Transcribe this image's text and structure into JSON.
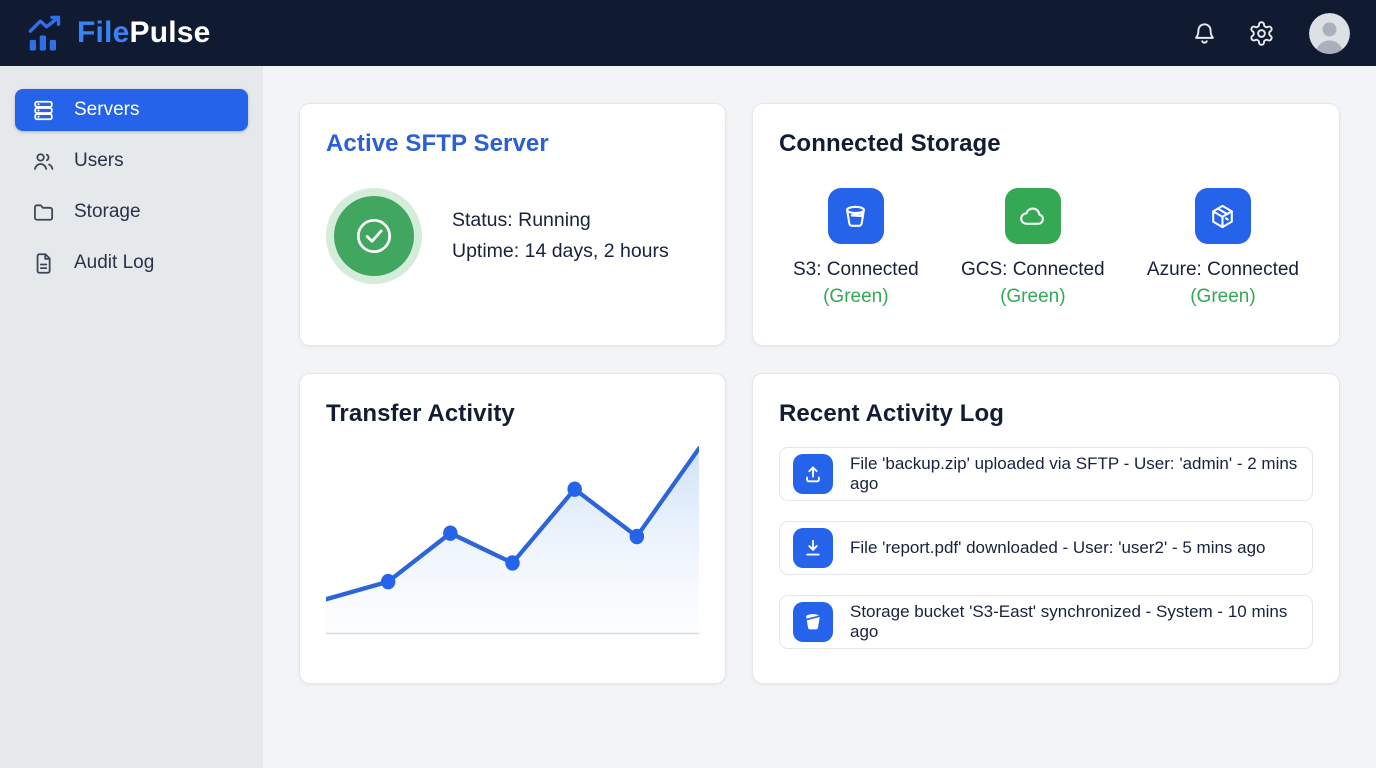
{
  "colors": {
    "navbar_bg": "#101b31",
    "accent_blue": "#2563eb",
    "logo_blue": "#3b82f6",
    "title_blue": "#2b5fd4",
    "green": "#34a853",
    "light_green": "#d4edda",
    "sidebar_bg": "#e6e9ec",
    "main_bg": "#f2f4f6",
    "line_blue": "#2c64d9"
  },
  "header": {
    "brand_primary": "File",
    "brand_secondary": "Pulse",
    "icons": [
      "trending-bar-chart-logo-icon",
      "bell-icon",
      "gear-icon",
      "avatar"
    ]
  },
  "sidebar": {
    "items": [
      {
        "label": "Servers",
        "icon": "server-stack-icon",
        "active": true
      },
      {
        "label": "Users",
        "icon": "users-icon",
        "active": false
      },
      {
        "label": "Storage",
        "icon": "folder-icon",
        "active": false
      },
      {
        "label": "Audit Log",
        "icon": "document-icon",
        "active": false
      }
    ]
  },
  "cards": {
    "sftp": {
      "title": "Active SFTP Server",
      "status": "Status: Running",
      "uptime": "Uptime: 14 days, 2 hours",
      "status_icon": "check-circle-icon",
      "status_color": "#41a65f"
    },
    "storage": {
      "title": "Connected Storage",
      "items": [
        {
          "label": "S3: Connected",
          "status": "(Green)",
          "icon": "bucket-icon",
          "tile_color": "#2563eb"
        },
        {
          "label": "GCS: Connected",
          "status": "(Green)",
          "icon": "cloud-icon",
          "tile_color": "#34a853"
        },
        {
          "label": "Azure: Connected",
          "status": "(Green)",
          "icon": "package-box-icon",
          "tile_color": "#2563eb"
        }
      ]
    },
    "transfer": {
      "title": "Transfer Activity",
      "chart_data": {
        "type": "area",
        "x": [
          0,
          1,
          2,
          3,
          4,
          5,
          6
        ],
        "values": [
          31,
          47,
          91,
          64,
          131,
          88,
          168
        ],
        "baseline": 168,
        "ylim": [
          0,
          172
        ],
        "dot_indices": [
          1,
          2,
          3,
          4,
          5
        ],
        "title": "Transfer Activity",
        "xlabel": "",
        "ylabel": "",
        "axis_labels_visible": false,
        "grid": false,
        "legend": false,
        "line_color": "#2c64d9",
        "fill": "blue-gradient-fade"
      }
    },
    "activity": {
      "title": "Recent Activity Log",
      "entries": [
        {
          "icon": "upload-icon",
          "text": "File 'backup.zip' uploaded via SFTP - User: 'admin' - 2 mins ago"
        },
        {
          "icon": "download-icon",
          "text": "File 'report.pdf' downloaded - User: 'user2' - 5 mins ago"
        },
        {
          "icon": "bucket-filled-icon",
          "text": "Storage bucket 'S3-East' synchronized - System - 10 mins ago"
        }
      ]
    }
  }
}
